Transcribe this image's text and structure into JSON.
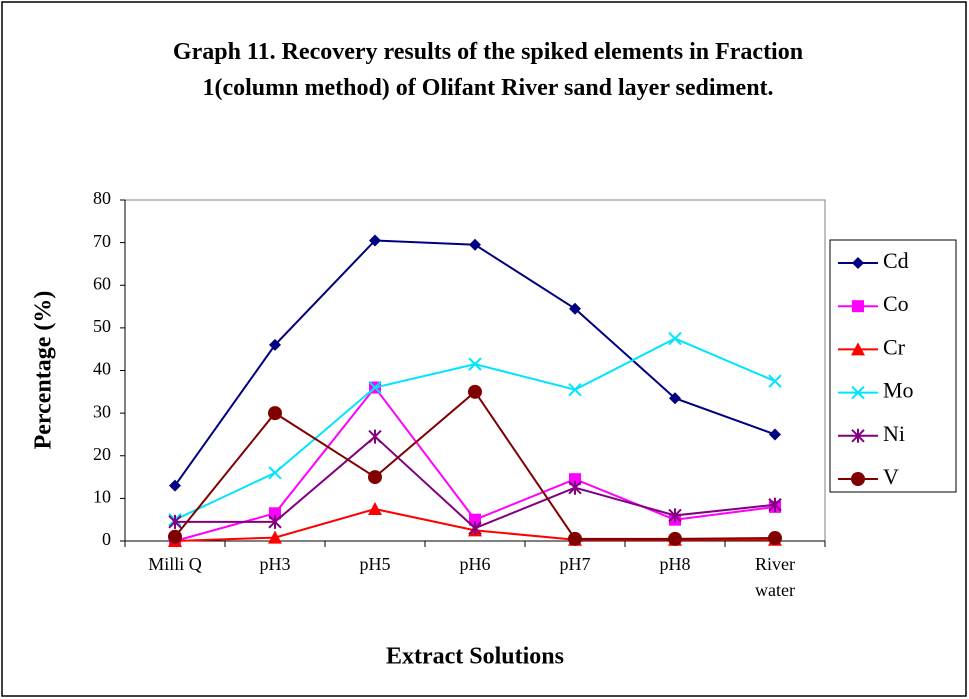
{
  "chart_data": {
    "type": "line",
    "title": "Graph 11. Recovery results of the spiked elements in Fraction 1(column method) of Olifant River sand layer sediment.",
    "x_label": "Extract Solutions",
    "y_label": "Percentage (%)",
    "categories": [
      "Milli Q",
      "pH3",
      "pH5",
      "pH6",
      "pH7",
      "pH8",
      "River water"
    ],
    "ylim": [
      0,
      80
    ],
    "yticks": [
      0,
      10,
      20,
      30,
      40,
      50,
      60,
      70,
      80
    ],
    "grid": false,
    "legend": "right",
    "series": [
      {
        "name": "Cd",
        "color": "#000080",
        "marker": "diamond",
        "values": [
          13,
          46,
          70.5,
          69.5,
          54.5,
          33.5,
          25
        ]
      },
      {
        "name": "Co",
        "color": "#ff00ff",
        "marker": "square",
        "values": [
          0,
          6.5,
          36,
          5,
          14.5,
          5,
          8
        ]
      },
      {
        "name": "Cr",
        "color": "#ff0000",
        "marker": "triangle",
        "values": [
          0,
          0.8,
          7.5,
          2.5,
          0.3,
          0.3,
          0.3
        ]
      },
      {
        "name": "Mo",
        "color": "#00e5ff",
        "marker": "x",
        "values": [
          5,
          16,
          36,
          41.5,
          35.5,
          47.5,
          37.5
        ]
      },
      {
        "name": "Ni",
        "color": "#800080",
        "marker": "asterisk",
        "values": [
          4.5,
          4.5,
          24.5,
          3,
          12.5,
          6,
          8.5
        ]
      },
      {
        "name": "V",
        "color": "#800000",
        "marker": "circle",
        "values": [
          1,
          30,
          15,
          35,
          0.5,
          0.5,
          0.7
        ]
      }
    ]
  }
}
